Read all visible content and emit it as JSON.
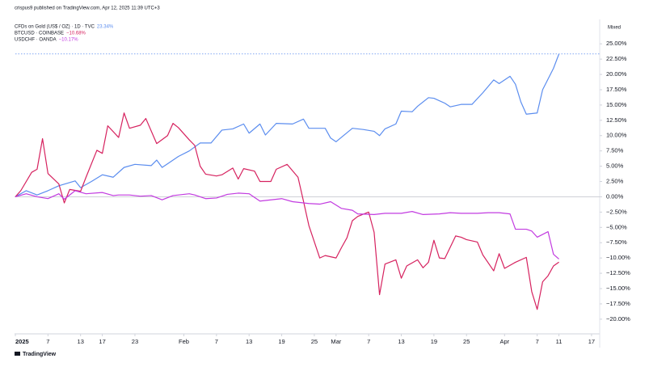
{
  "chart_data": {
    "type": "line",
    "header": "crispus9 published on TradingView.com, Apr 12, 2025 11:39 UTC+3",
    "scale_label": "Mixed",
    "brand": "TradingView",
    "xlim": [
      0,
      107.5
    ],
    "ylim": [
      -22.4,
      28.2
    ],
    "xticks": [
      {
        "value": 0,
        "label": "2025"
      },
      {
        "value": 6,
        "label": "7"
      },
      {
        "value": 12,
        "label": "13"
      },
      {
        "value": 16,
        "label": "17"
      },
      {
        "value": 22,
        "label": "23"
      },
      {
        "value": 31,
        "label": "Feb"
      },
      {
        "value": 37,
        "label": "7"
      },
      {
        "value": 43,
        "label": "13"
      },
      {
        "value": 49,
        "label": "19"
      },
      {
        "value": 55,
        "label": "25"
      },
      {
        "value": 59,
        "label": "Mar"
      },
      {
        "value": 65,
        "label": "7"
      },
      {
        "value": 71,
        "label": "13"
      },
      {
        "value": 77,
        "label": "19"
      },
      {
        "value": 83,
        "label": "25"
      },
      {
        "value": 90,
        "label": "Apr"
      },
      {
        "value": 96,
        "label": "7"
      },
      {
        "value": 100,
        "label": "11"
      },
      {
        "value": 106,
        "label": "17"
      }
    ],
    "yticks": [
      {
        "value": 25,
        "label": "25.00%"
      },
      {
        "value": 22.5,
        "label": "22.50%"
      },
      {
        "value": 20,
        "label": "20.00%"
      },
      {
        "value": 17.5,
        "label": "17.50%"
      },
      {
        "value": 15,
        "label": "15.00%"
      },
      {
        "value": 12.5,
        "label": "12.50%"
      },
      {
        "value": 10,
        "label": "10.00%"
      },
      {
        "value": 7.5,
        "label": "7.50%"
      },
      {
        "value": 5,
        "label": "5.00%"
      },
      {
        "value": 2.5,
        "label": "2.50%"
      },
      {
        "value": 0,
        "label": "0.00%"
      },
      {
        "value": -2.5,
        "label": "−2.50%"
      },
      {
        "value": -5,
        "label": "−5.00%"
      },
      {
        "value": -7.5,
        "label": "−7.50%"
      },
      {
        "value": -10,
        "label": "−10.00%"
      },
      {
        "value": -12.5,
        "label": "−12.50%"
      },
      {
        "value": -15,
        "label": "−15.00%"
      },
      {
        "value": -17.5,
        "label": "−17.50%"
      },
      {
        "value": -20,
        "label": "−20.00%"
      }
    ],
    "series": [
      {
        "name": "CFDs on Gold (US$ / OZ) · 1D · TVC",
        "legend_value": "23.34%",
        "color": "#5b8def",
        "x": [
          0,
          2,
          4,
          6,
          8,
          11,
          12,
          14,
          16,
          18,
          20,
          22,
          25,
          26,
          27,
          28,
          30,
          32,
          34,
          36,
          38,
          40,
          42,
          43,
          45,
          46,
          48,
          51,
          53,
          54,
          57,
          58,
          59,
          62,
          64,
          66,
          67,
          68,
          70,
          71,
          73,
          74,
          76,
          77,
          79,
          80,
          82,
          84,
          86,
          88,
          89,
          91,
          92,
          93,
          94,
          96,
          97,
          99,
          100
        ],
        "values": [
          0,
          1.0,
          0.3,
          1.0,
          1.8,
          2.6,
          1.5,
          2.5,
          3.6,
          3.2,
          4.8,
          5.3,
          5.1,
          6,
          4.8,
          5.4,
          6.6,
          7.5,
          8.8,
          8.8,
          10.9,
          11.1,
          11.9,
          10.4,
          11.9,
          10.1,
          12,
          11.9,
          12.7,
          11.2,
          11.2,
          9.6,
          9.0,
          11.2,
          11.0,
          10.7,
          10.0,
          11.1,
          11.9,
          14.0,
          13.9,
          14.8,
          16.2,
          16.1,
          15.3,
          14.7,
          15.1,
          15.1,
          17.0,
          19.1,
          18.5,
          19.7,
          18.4,
          15.5,
          13.5,
          13.7,
          17.5,
          21.0,
          23.34
        ]
      },
      {
        "name": "BTCUSD · COINBASE",
        "legend_value": "−10.68%",
        "color": "#d6225f",
        "x": [
          0,
          1,
          3,
          4,
          5,
          6,
          8,
          9,
          10,
          12,
          13,
          15,
          16,
          17,
          19,
          20,
          21,
          23,
          24,
          26,
          28,
          29,
          30,
          32,
          33,
          34,
          35,
          37,
          38,
          40,
          41,
          42,
          44,
          45,
          47,
          48,
          50,
          52,
          53,
          54,
          56,
          57,
          59,
          60,
          61,
          62,
          63,
          65,
          66,
          67,
          68,
          70,
          71,
          72,
          74,
          75,
          76,
          77,
          78,
          79,
          81,
          82,
          83,
          85,
          86,
          88,
          89,
          90,
          92,
          94,
          95,
          96,
          97,
          98,
          99,
          100
        ],
        "values": [
          0,
          1,
          4,
          4.5,
          9.5,
          3.8,
          2.1,
          -1,
          1.2,
          0.9,
          3.2,
          7.6,
          7.1,
          11.6,
          9.7,
          13.7,
          11.2,
          11.7,
          12.8,
          8.7,
          10,
          12,
          11.3,
          9.3,
          8.4,
          5,
          3.7,
          3.4,
          3.6,
          4.7,
          2.9,
          4.6,
          4.2,
          2.5,
          2.5,
          4.5,
          5.3,
          3.2,
          -0.7,
          -4.7,
          -10,
          -9.6,
          -10,
          -8.3,
          -6.7,
          -3.9,
          -3.2,
          -2.5,
          -5.8,
          -16,
          -11,
          -10.3,
          -13.3,
          -11.3,
          -10.3,
          -11.6,
          -10.7,
          -7.1,
          -10,
          -10.1,
          -6.4,
          -6.6,
          -7,
          -7.4,
          -9.5,
          -12.1,
          -9.3,
          -11.7,
          -10.7,
          -9.9,
          -15.5,
          -18.4,
          -13.9,
          -12.9,
          -11.3,
          -10.68
        ]
      },
      {
        "name": "USDCHF · OANDA",
        "legend_value": "−10.17%",
        "color": "#c23be0",
        "x": [
          0,
          2,
          4,
          6,
          8,
          9,
          11,
          13,
          16,
          18,
          19,
          21,
          23,
          25,
          27,
          29,
          32,
          33,
          35,
          37,
          39,
          41,
          43,
          44,
          45,
          47,
          49,
          51,
          53,
          54,
          56,
          58,
          60,
          62,
          63,
          66,
          68,
          71,
          73,
          75,
          78,
          80,
          82,
          85,
          87,
          89,
          91,
          92,
          94,
          95,
          96,
          98,
          99,
          100
        ],
        "values": [
          0,
          0.5,
          0,
          -0.3,
          0.5,
          -0.4,
          1.0,
          0.5,
          0.7,
          0.2,
          0.3,
          0.3,
          0.1,
          0.2,
          -0.5,
          0.2,
          0.5,
          0.3,
          -0.3,
          -0.2,
          0.4,
          0.6,
          0.5,
          -0.1,
          -0.7,
          -0.5,
          -0.3,
          -0.8,
          -1.0,
          -1.1,
          -1.2,
          -0.8,
          -1.9,
          -2.2,
          -2.8,
          -2.9,
          -2.7,
          -2.7,
          -2.4,
          -2.9,
          -2.8,
          -2.6,
          -2.7,
          -2.7,
          -2.6,
          -2.6,
          -2.8,
          -5.3,
          -5.3,
          -5.6,
          -6.6,
          -5.7,
          -9.4,
          -10.17
        ]
      }
    ]
  }
}
